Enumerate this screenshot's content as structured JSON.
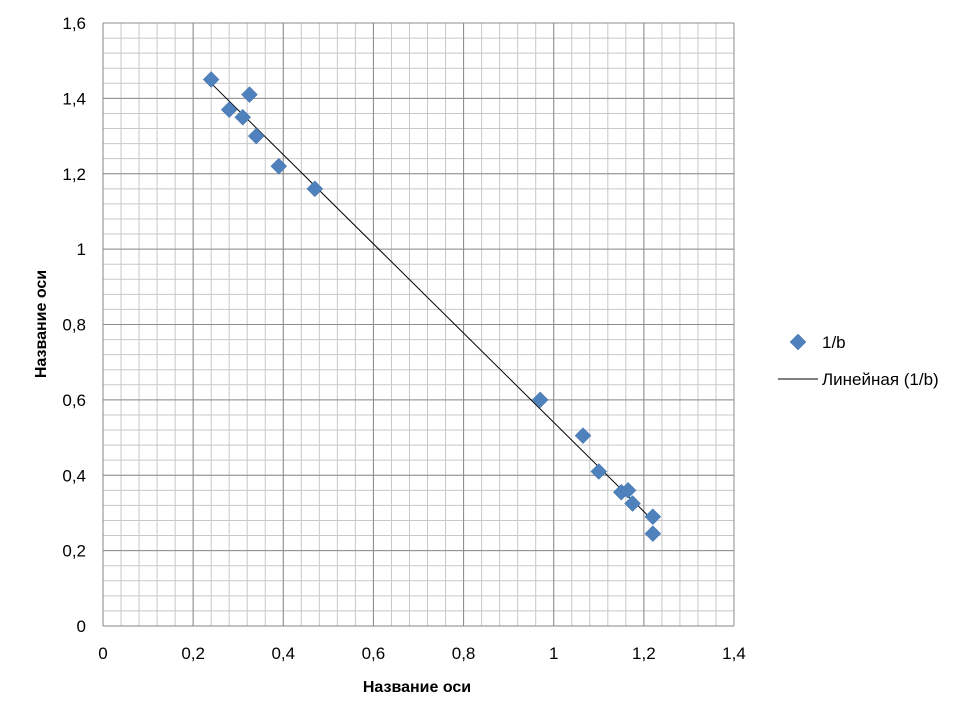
{
  "chart_data": {
    "type": "scatter",
    "xlabel": "Название оси",
    "ylabel": "Название оси",
    "xlim": [
      0,
      1.4
    ],
    "ylim": [
      0,
      1.6
    ],
    "x_major_step": 0.2,
    "y_major_step": 0.2,
    "x_minor_step": 0.04,
    "y_minor_step": 0.04,
    "grid": true,
    "legend_position": "right",
    "x_tick_labels": [
      "0",
      "0,2",
      "0,4",
      "0,6",
      "0,8",
      "1",
      "1,2",
      "1,4"
    ],
    "y_tick_labels": [
      "0",
      "0,2",
      "0,4",
      "0,6",
      "0,8",
      "1",
      "1,2",
      "1,4",
      "1,6"
    ],
    "series": [
      {
        "name": "1/b",
        "marker": "diamond",
        "color": "#4F81BD",
        "points": [
          {
            "x": 0.24,
            "y": 1.45
          },
          {
            "x": 0.28,
            "y": 1.37
          },
          {
            "x": 0.31,
            "y": 1.35
          },
          {
            "x": 0.325,
            "y": 1.41
          },
          {
            "x": 0.34,
            "y": 1.3
          },
          {
            "x": 0.39,
            "y": 1.22
          },
          {
            "x": 0.47,
            "y": 1.16
          },
          {
            "x": 0.97,
            "y": 0.6
          },
          {
            "x": 1.065,
            "y": 0.505
          },
          {
            "x": 1.1,
            "y": 0.41
          },
          {
            "x": 1.15,
            "y": 0.355
          },
          {
            "x": 1.165,
            "y": 0.36
          },
          {
            "x": 1.175,
            "y": 0.325
          },
          {
            "x": 1.22,
            "y": 0.29
          },
          {
            "x": 1.22,
            "y": 0.245
          }
        ]
      }
    ],
    "trendline": {
      "name": "Линейная (1/b)",
      "type": "linear",
      "color": "#000000",
      "x_range": [
        0.24,
        1.22
      ],
      "y_range": [
        1.44,
        0.28
      ]
    }
  }
}
